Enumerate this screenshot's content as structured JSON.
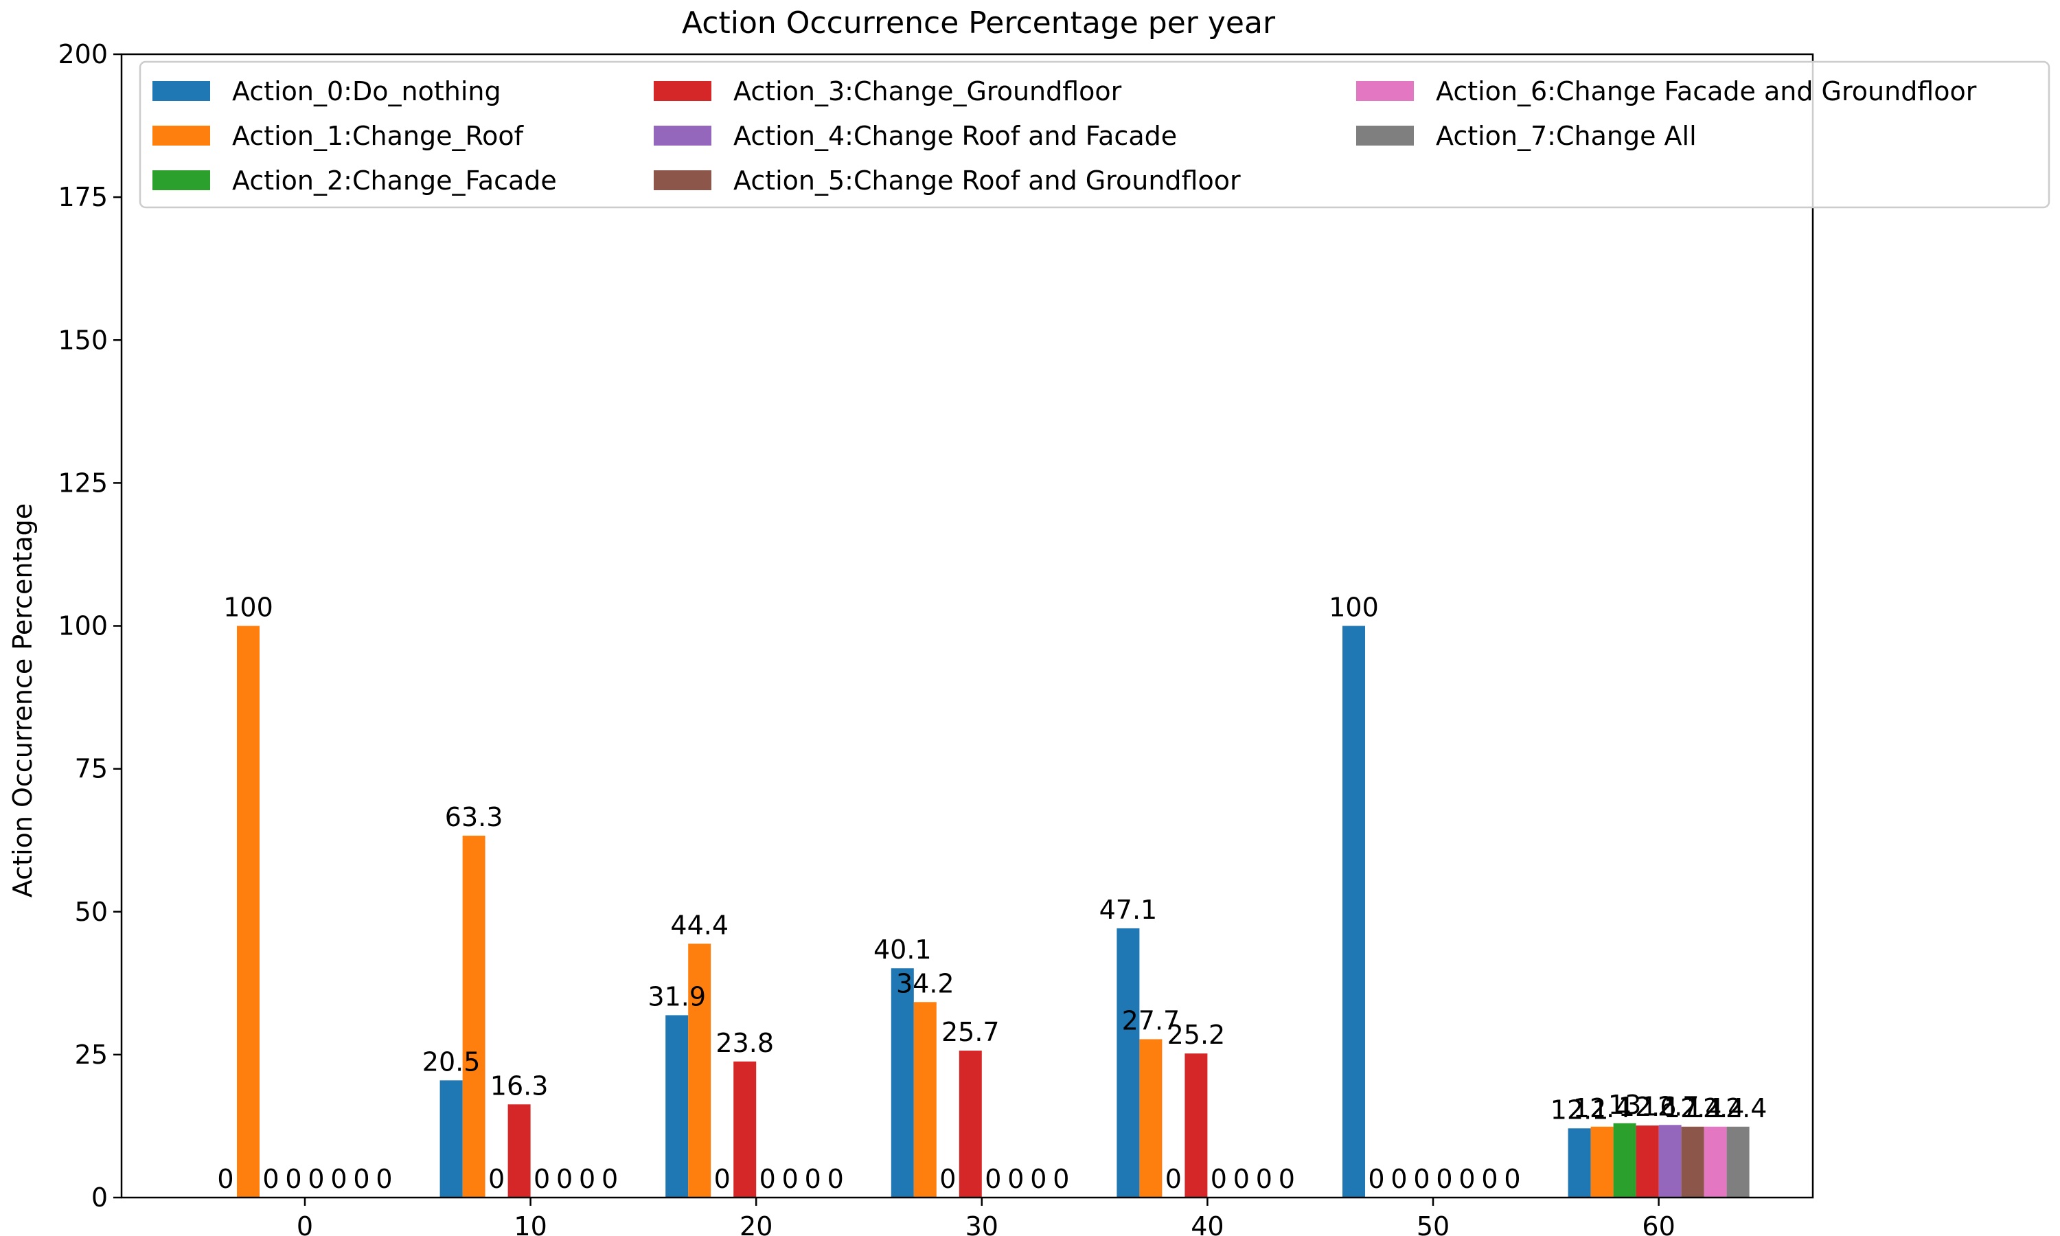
{
  "chart_data": {
    "type": "bar",
    "title": "Action Occurrence Percentage per year",
    "xlabel": "",
    "ylabel": "Action Occurrence Percentage",
    "ylim": [
      0,
      200
    ],
    "yticks": [
      "0",
      "25",
      "50",
      "75",
      "100",
      "125",
      "150",
      "175",
      "200"
    ],
    "categories": [
      "0",
      "10",
      "20",
      "30",
      "40",
      "50",
      "60"
    ],
    "legend_position": "top",
    "series": [
      {
        "name": "Action_0:Do_nothing",
        "color": "#1f77b4",
        "values": [
          0,
          20.5,
          31.9,
          40.1,
          47.1,
          100,
          12.1
        ],
        "labels": [
          "0",
          "20.5",
          "31.9",
          "40.1",
          "47.1",
          "100",
          "12.1"
        ]
      },
      {
        "name": "Action_1:Change_Roof",
        "color": "#ff7f0e",
        "values": [
          100,
          63.3,
          44.4,
          34.2,
          27.7,
          0,
          12.4
        ],
        "labels": [
          "100",
          "63.3",
          "44.4",
          "34.2",
          "27.7",
          "0",
          "12.4"
        ]
      },
      {
        "name": "Action_2:Change_Facade",
        "color": "#2ca02c",
        "values": [
          0,
          0,
          0,
          0,
          0,
          0,
          13.0
        ],
        "labels": [
          "0",
          "0",
          "0",
          "0",
          "0",
          "0",
          "13"
        ]
      },
      {
        "name": "Action_3:Change_Groundfloor",
        "color": "#d62728",
        "values": [
          0,
          16.3,
          23.8,
          25.7,
          25.2,
          0,
          12.6
        ],
        "labels": [
          "0",
          "16.3",
          "23.8",
          "25.7",
          "25.2",
          "0",
          "12.6"
        ]
      },
      {
        "name": "Action_4:Change Roof and Facade",
        "color": "#9467bd",
        "values": [
          0,
          0,
          0,
          0,
          0,
          0,
          12.7
        ],
        "labels": [
          "0",
          "0",
          "0",
          "0",
          "0",
          "0",
          "12.7"
        ]
      },
      {
        "name": "Action_5:Change Roof and Groundfloor",
        "color": "#8c564b",
        "values": [
          0,
          0,
          0,
          0,
          0,
          0,
          12.4
        ],
        "labels": [
          "0",
          "0",
          "0",
          "0",
          "0",
          "0",
          "12.4"
        ]
      },
      {
        "name": "Action_6:Change Facade and Groundfloor",
        "color": "#e377c2",
        "values": [
          0,
          0,
          0,
          0,
          0,
          0,
          12.4
        ],
        "labels": [
          "0",
          "0",
          "0",
          "0",
          "0",
          "0",
          "12.4"
        ]
      },
      {
        "name": "Action_7:Change All",
        "color": "#7f7f7f",
        "values": [
          0,
          0,
          0,
          0,
          0,
          0,
          12.4
        ],
        "labels": [
          "0",
          "0",
          "0",
          "0",
          "0",
          "0",
          "12.4"
        ]
      }
    ]
  }
}
